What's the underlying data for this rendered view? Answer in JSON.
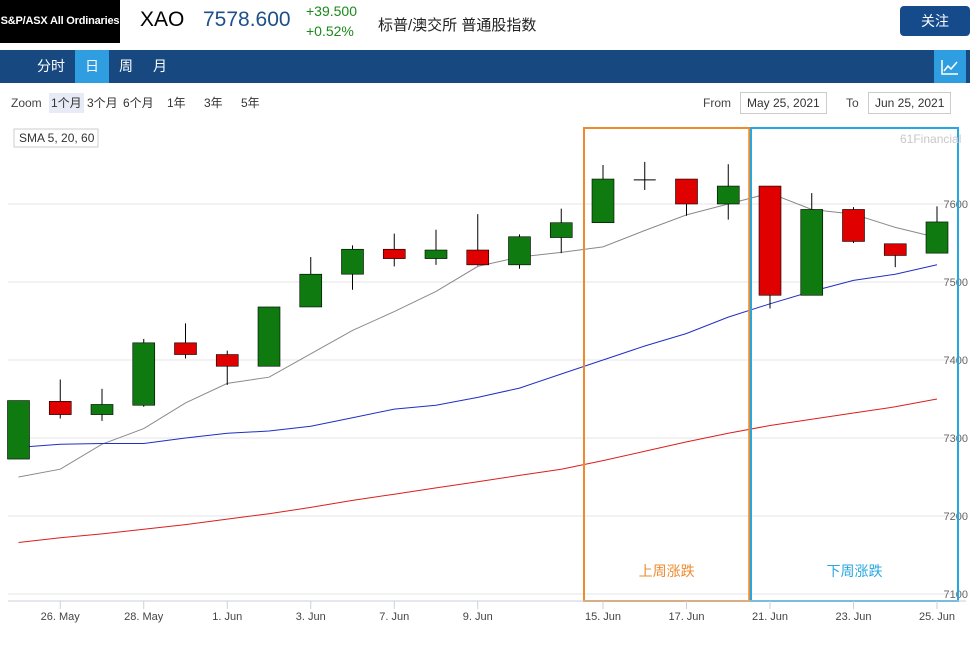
{
  "header": {
    "logo_text": "S&P/ASX All Ordinaries",
    "symbol": "XAO",
    "price": "7578.600",
    "change": "+39.500",
    "change_pct": "+0.52%",
    "description": "标普/澳交所 普通股指数",
    "follow_label": "关注"
  },
  "nav": {
    "tabs": [
      {
        "label": "分时",
        "active": false
      },
      {
        "label": "日",
        "active": true
      },
      {
        "label": "周",
        "active": false
      },
      {
        "label": "月",
        "active": false
      }
    ],
    "chart_icon": "line-chart-icon"
  },
  "zoom": {
    "label": "Zoom",
    "options": [
      {
        "label": "1个月",
        "active": true
      },
      {
        "label": "3个月",
        "active": false
      },
      {
        "label": "6个月",
        "active": false
      },
      {
        "label": "1年",
        "active": false
      },
      {
        "label": "3年",
        "active": false
      },
      {
        "label": "5年",
        "active": false
      }
    ],
    "from_label": "From",
    "from_value": "May 25, 2021",
    "to_label": "To",
    "to_value": "Jun 25, 2021"
  },
  "colors": {
    "up": "#0f7a0f",
    "down": "#e00000",
    "sma5": "#8a8a8a",
    "sma20": "#1f2fc4",
    "sma60": "#d9201c",
    "last_week_box": "#ee8a2e",
    "next_week_box": "#27a7e0"
  },
  "chart_data": {
    "type": "candlestick",
    "legend_text": "SMA 5, 20, 60",
    "watermark": "61Financial",
    "ylim": [
      7100,
      7650
    ],
    "y_ticks": [
      7100,
      7200,
      7300,
      7400,
      7500,
      7600
    ],
    "x_tick_labels": [
      "26. May",
      "28. May",
      "1. Jun",
      "3. Jun",
      "7. Jun",
      "9. Jun",
      "15. Jun",
      "17. Jun",
      "21. Jun",
      "23. Jun",
      "25. Jun"
    ],
    "x_tick_index": [
      1,
      3,
      5,
      7,
      9,
      11,
      14,
      16,
      18,
      20,
      22
    ],
    "candles": [
      {
        "o": 7273,
        "h": 7348,
        "l": 7273,
        "c": 7348
      },
      {
        "o": 7347,
        "h": 7375,
        "l": 7325,
        "c": 7330
      },
      {
        "o": 7330,
        "h": 7363,
        "l": 7322,
        "c": 7343
      },
      {
        "o": 7342,
        "h": 7427,
        "l": 7340,
        "c": 7422
      },
      {
        "o": 7422,
        "h": 7447,
        "l": 7402,
        "c": 7407
      },
      {
        "o": 7407,
        "h": 7412,
        "l": 7368,
        "c": 7392
      },
      {
        "o": 7392,
        "h": 7468,
        "l": 7392,
        "c": 7468
      },
      {
        "o": 7468,
        "h": 7532,
        "l": 7468,
        "c": 7510
      },
      {
        "o": 7510,
        "h": 7547,
        "l": 7490,
        "c": 7542
      },
      {
        "o": 7542,
        "h": 7562,
        "l": 7520,
        "c": 7530
      },
      {
        "o": 7530,
        "h": 7567,
        "l": 7522,
        "c": 7541
      },
      {
        "o": 7541,
        "h": 7587,
        "l": 7521,
        "c": 7522
      },
      {
        "o": 7522,
        "h": 7561,
        "l": 7517,
        "c": 7558
      },
      {
        "o": 7557,
        "h": 7594,
        "l": 7537,
        "c": 7576
      },
      {
        "o": 7576,
        "h": 7650,
        "l": 7576,
        "c": 7632
      },
      {
        "o": 7630,
        "h": 7654,
        "l": 7618,
        "c": 7631
      },
      {
        "o": 7632,
        "h": 7632,
        "l": 7585,
        "c": 7600
      },
      {
        "o": 7600,
        "h": 7651,
        "l": 7580,
        "c": 7623
      },
      {
        "o": 7623,
        "h": 7623,
        "l": 7466,
        "c": 7483
      },
      {
        "o": 7483,
        "h": 7614,
        "l": 7483,
        "c": 7593
      },
      {
        "o": 7593,
        "h": 7596,
        "l": 7550,
        "c": 7552
      },
      {
        "o": 7549,
        "h": 7549,
        "l": 7519,
        "c": 7534
      },
      {
        "o": 7537,
        "h": 7597,
        "l": 7537,
        "c": 7577
      }
    ],
    "series": [
      {
        "name": "SMA 5",
        "values": [
          7250,
          7260,
          7292,
          7312,
          7345,
          7370,
          7378,
          7408,
          7438,
          7462,
          7488,
          7520,
          7532,
          7538,
          7545,
          7566,
          7586,
          7600,
          7614,
          7593,
          7587,
          7570,
          7557
        ]
      },
      {
        "name": "SMA 20",
        "values": [
          7288,
          7292,
          7293,
          7293,
          7300,
          7306,
          7309,
          7315,
          7326,
          7337,
          7342,
          7352,
          7364,
          7382,
          7400,
          7418,
          7434,
          7455,
          7472,
          7488,
          7502,
          7510,
          7522
        ]
      },
      {
        "name": "SMA 60",
        "values": [
          7166,
          7172,
          7177,
          7183,
          7189,
          7196,
          7203,
          7211,
          7220,
          7228,
          7236,
          7244,
          7252,
          7260,
          7271,
          7283,
          7295,
          7306,
          7316,
          7324,
          7332,
          7340,
          7350
        ]
      }
    ],
    "annotations": [
      {
        "label": "上周涨跌",
        "from_index": 14,
        "to_index": 17
      },
      {
        "label": "下周涨跌",
        "from_index": 18,
        "to_index": 22
      }
    ]
  }
}
